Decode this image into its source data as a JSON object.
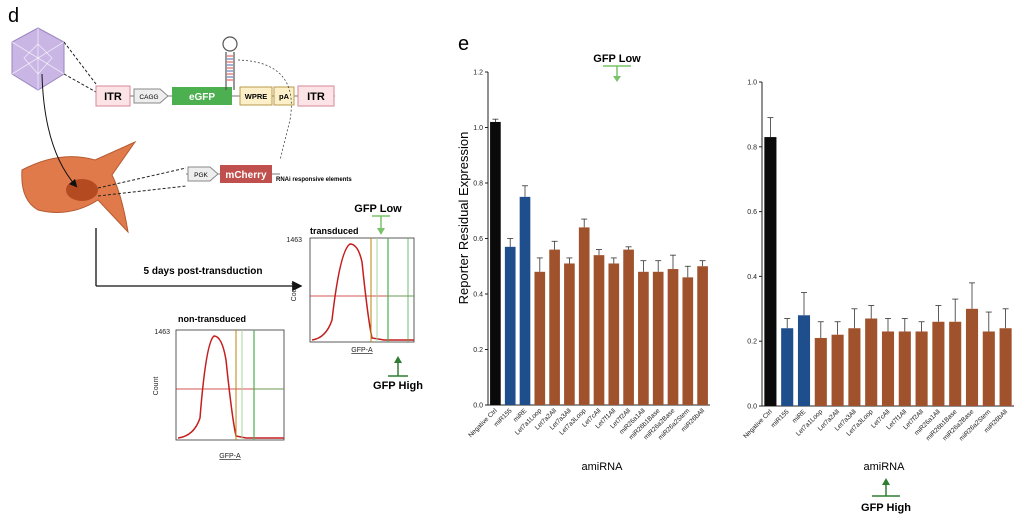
{
  "panel_d": {
    "letter": "d",
    "construct": {
      "itr_left": "ITR",
      "cagg": "CAGG",
      "egfp": "eGFP",
      "wpre": "WPRE",
      "pa": "pA",
      "itr_right": "ITR",
      "pgk": "PGK",
      "mcherry": "mCherry",
      "rnai_label": "RNAi responsive elements"
    },
    "arrow_label": "5 days post-transduction",
    "transduced": {
      "title": "transduced",
      "ylabel": "Count",
      "xlabel": "GFP-A",
      "ymax": "1463",
      "gfp_low": "GFP Low",
      "gfp_high": "GFP High"
    },
    "non_transduced": {
      "title": "non-transduced",
      "ylabel": "Count",
      "xlabel": "GFP-A",
      "ymax": "1463"
    }
  },
  "panel_e": {
    "letter": "e",
    "gfp_low": "GFP Low",
    "gfp_high": "GFP High",
    "ylabel": "Reporter Residual Expression",
    "xlabel_left": "amiRNA",
    "xlabel_right": "amiRNA"
  },
  "colors": {
    "black": "#0a0a0a",
    "blue": "#1f4e8c",
    "brown": "#a0522d",
    "egfp": "#4caf50",
    "mcherry": "#c0504d",
    "cell": "#e07a4a",
    "capsid": "#c9b6e4",
    "hist_red": "#c41e1e",
    "gate_green": "#4caf50"
  },
  "chart_data": [
    {
      "type": "bar",
      "title": "",
      "gate": "GFP Low",
      "ylabel": "Reporter Residual Expression",
      "xlabel": "amiRNA",
      "ylim": [
        0,
        1.2
      ],
      "yticks": [
        "0.0",
        "0.2",
        "0.4",
        "0.6",
        "0.8",
        "1.0",
        "1.2"
      ],
      "categories": [
        "Negative Ctrl",
        "miR155",
        "miRE",
        "Let7a1Loop",
        "Let7a2All",
        "Let7a3All",
        "Let7a3Loop",
        "Let7cAll",
        "Let7f1All",
        "Let7f2All",
        "miR26a1All",
        "miR26b1Base",
        "miR26a2Base",
        "miR26a2Stem",
        "miR26bAll"
      ],
      "values": [
        1.02,
        0.57,
        0.75,
        0.48,
        0.56,
        0.51,
        0.64,
        0.54,
        0.51,
        0.56,
        0.48,
        0.48,
        0.49,
        0.46,
        0.5
      ],
      "errors": [
        0.01,
        0.03,
        0.04,
        0.05,
        0.03,
        0.02,
        0.03,
        0.02,
        0.02,
        0.01,
        0.04,
        0.04,
        0.05,
        0.04,
        0.02
      ],
      "colors": [
        "black",
        "blue",
        "blue",
        "brown",
        "brown",
        "brown",
        "brown",
        "brown",
        "brown",
        "brown",
        "brown",
        "brown",
        "brown",
        "brown",
        "brown"
      ]
    },
    {
      "type": "bar",
      "title": "",
      "gate": "GFP High",
      "ylabel": "",
      "xlabel": "amiRNA",
      "ylim": [
        0,
        1.0
      ],
      "yticks": [
        "0.0",
        "0.2",
        "0.4",
        "0.6",
        "0.8",
        "1.0"
      ],
      "categories": [
        "Negative Ctrl",
        "miR155",
        "miRE",
        "Let7a1Loop",
        "Let7a2All",
        "Let7a3All",
        "Let7a3Loop",
        "Let7cAll",
        "Let7f1All",
        "Let7f2All",
        "miR26a1All",
        "miR26b1Base",
        "miR26a2Base",
        "miR26a2Stem",
        "miR26bAll"
      ],
      "values": [
        0.83,
        0.24,
        0.28,
        0.21,
        0.22,
        0.24,
        0.27,
        0.23,
        0.23,
        0.23,
        0.26,
        0.26,
        0.3,
        0.23,
        0.24
      ],
      "errors": [
        0.06,
        0.03,
        0.07,
        0.05,
        0.04,
        0.06,
        0.04,
        0.04,
        0.04,
        0.03,
        0.05,
        0.07,
        0.08,
        0.06,
        0.06
      ],
      "colors": [
        "black",
        "blue",
        "blue",
        "brown",
        "brown",
        "brown",
        "brown",
        "brown",
        "brown",
        "brown",
        "brown",
        "brown",
        "brown",
        "brown",
        "brown"
      ]
    }
  ]
}
